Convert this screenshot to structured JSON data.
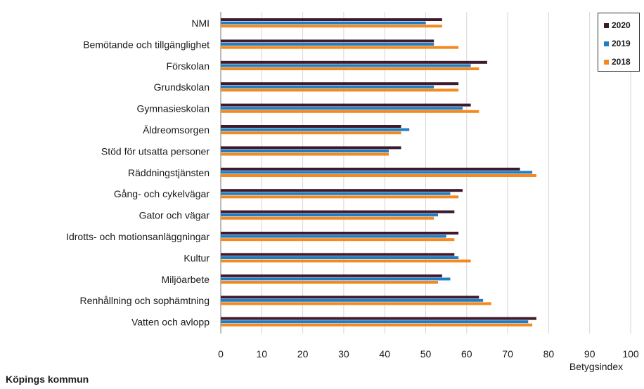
{
  "chart_data": {
    "type": "bar",
    "orientation": "horizontal",
    "categories": [
      "NMI",
      "Bemötande och tillgänglighet",
      "Förskolan",
      "Grundskolan",
      "Gymnasieskolan",
      "Äldreomsorgen",
      "Stöd för utsatta personer",
      "Räddningstjänsten",
      "Gång- och cykelvägar",
      "Gator och vägar",
      "Idrotts- och motionsanläggningar",
      "Kultur",
      "Miljöarbete",
      "Renhållning och sophämtning",
      "Vatten och avlopp"
    ],
    "series": [
      {
        "name": "2020",
        "color": "#3d1a2e",
        "values": [
          54,
          52,
          65,
          58,
          61,
          44,
          44,
          73,
          59,
          57,
          58,
          57,
          54,
          63,
          77
        ]
      },
      {
        "name": "2019",
        "color": "#1f7fc4",
        "values": [
          50,
          52,
          61,
          52,
          59,
          46,
          41,
          76,
          56,
          53,
          55,
          58,
          56,
          64,
          75
        ]
      },
      {
        "name": "2018",
        "color": "#f5891f",
        "values": [
          54,
          58,
          63,
          58,
          63,
          44,
          41,
          77,
          58,
          52,
          57,
          61,
          53,
          66,
          76
        ]
      }
    ],
    "xlim": [
      0,
      100
    ],
    "xticks": [
      "0",
      "10",
      "20",
      "30",
      "40",
      "50",
      "60",
      "70",
      "80",
      "90",
      "100"
    ],
    "xlabel": "Betygsindex",
    "grid": true,
    "legend_position": "top-right"
  },
  "footer": "Köpings kommun"
}
